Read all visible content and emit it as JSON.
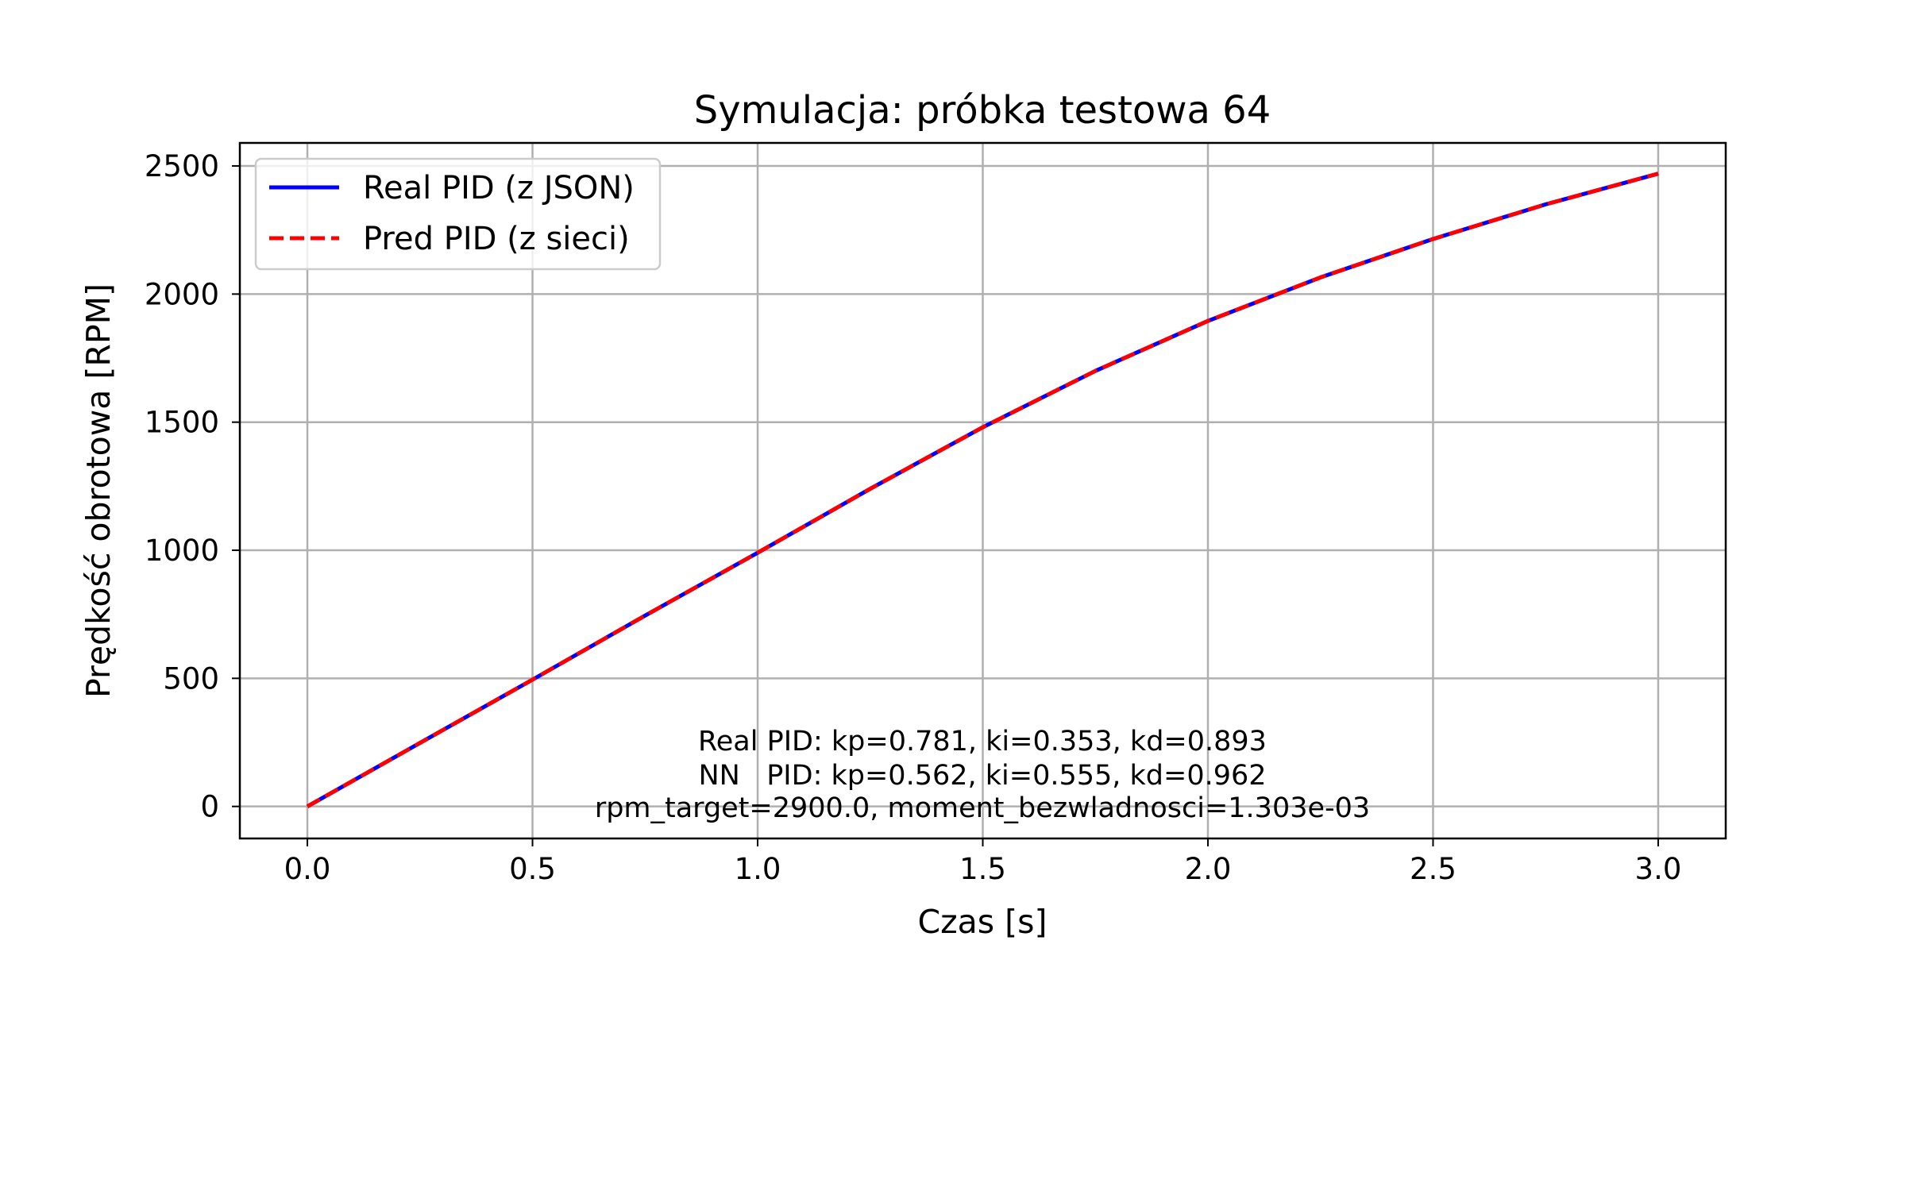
{
  "chart_data": {
    "type": "line",
    "title": "Symulacja: próbka testowa 64",
    "xlabel": "Czas [s]",
    "ylabel": "Prędkość obrotowa [RPM]",
    "xlim": [
      -0.15,
      3.15
    ],
    "ylim": [
      -125,
      2590
    ],
    "xticks": [
      0.0,
      0.5,
      1.0,
      1.5,
      2.0,
      2.5,
      3.0
    ],
    "xtick_labels": [
      "0.0",
      "0.5",
      "1.0",
      "1.5",
      "2.0",
      "2.5",
      "3.0"
    ],
    "yticks": [
      0,
      500,
      1000,
      1500,
      2000,
      2500
    ],
    "ytick_labels": [
      "0",
      "500",
      "1000",
      "1500",
      "2000",
      "2500"
    ],
    "grid": true,
    "legend_position": "upper-left",
    "series": [
      {
        "name": "Real PID (z JSON)",
        "color": "#0000ff",
        "style": "solid",
        "x": [
          0.0,
          0.25,
          0.5,
          0.75,
          1.0,
          1.25,
          1.5,
          1.75,
          2.0,
          2.25,
          2.5,
          2.75,
          3.0
        ],
        "y": [
          0,
          248,
          495,
          745,
          990,
          1240,
          1480,
          1700,
          1895,
          2065,
          2215,
          2350,
          2470
        ]
      },
      {
        "name": "Pred PID (z sieci)",
        "color": "#ff0000",
        "style": "dashed",
        "x": [
          0.0,
          0.25,
          0.5,
          0.75,
          1.0,
          1.25,
          1.5,
          1.75,
          2.0,
          2.25,
          2.5,
          2.75,
          3.0
        ],
        "y": [
          0,
          248,
          495,
          745,
          990,
          1240,
          1480,
          1700,
          1895,
          2065,
          2215,
          2350,
          2470
        ]
      }
    ],
    "annotation": [
      "Real PID: kp=0.781, ki=0.353, kd=0.893",
      "NN   PID: kp=0.562, ki=0.555, kd=0.962",
      "rpm_target=2900.0, moment_bezwladnosci=1.303e-03"
    ]
  }
}
